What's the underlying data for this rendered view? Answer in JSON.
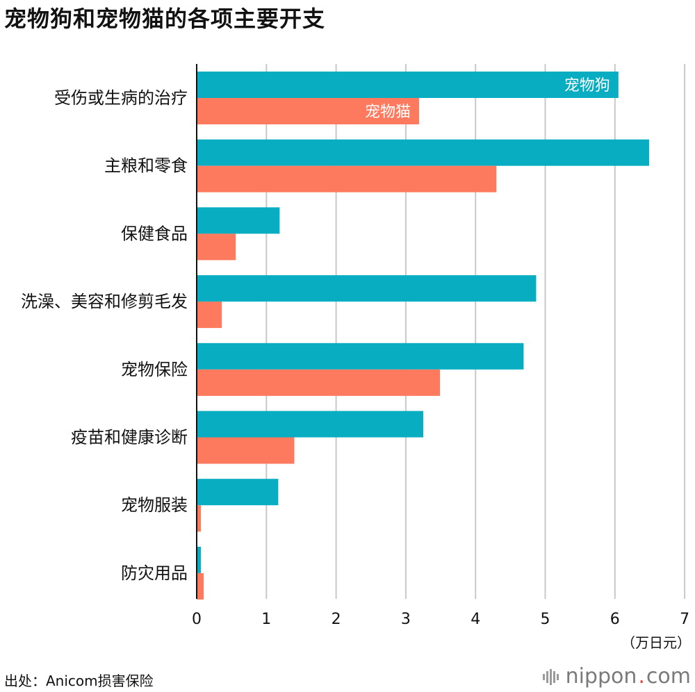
{
  "title": "宠物狗和宠物猫的各项主要开支",
  "source": "出处：Anicom损害保险",
  "logo": {
    "name": "nippon",
    "dot": ".",
    "suffix": "com"
  },
  "colors": {
    "dog": "#08adc1",
    "cat": "#fe7a5e",
    "grid": "#c8c8c8",
    "axis": "#111111"
  },
  "chart_data": {
    "type": "bar",
    "orientation": "horizontal",
    "title": "宠物狗和宠物猫的各项主要开支",
    "unit": "（万日元）",
    "categories": [
      "受伤或生病的治疗",
      "主粮和零食",
      "保健食品",
      "洗澡、美容和修剪毛发",
      "宠物保险",
      "疫苗和健康诊断",
      "宠物服装",
      "防灾用品"
    ],
    "series": [
      {
        "name": "宠物狗",
        "color": "#08adc1",
        "values": [
          6.05,
          6.49,
          1.19,
          4.87,
          4.69,
          3.25,
          1.17,
          0.06
        ]
      },
      {
        "name": "宠物猫",
        "color": "#fe7a5e",
        "values": [
          3.19,
          4.3,
          0.56,
          0.36,
          3.49,
          1.4,
          0.06,
          0.1
        ]
      }
    ],
    "xlim": [
      0,
      7
    ],
    "xticks": [
      0,
      1,
      2,
      3,
      4,
      5,
      6,
      7
    ],
    "grid": true,
    "legend": "in-bar labels on first category"
  }
}
